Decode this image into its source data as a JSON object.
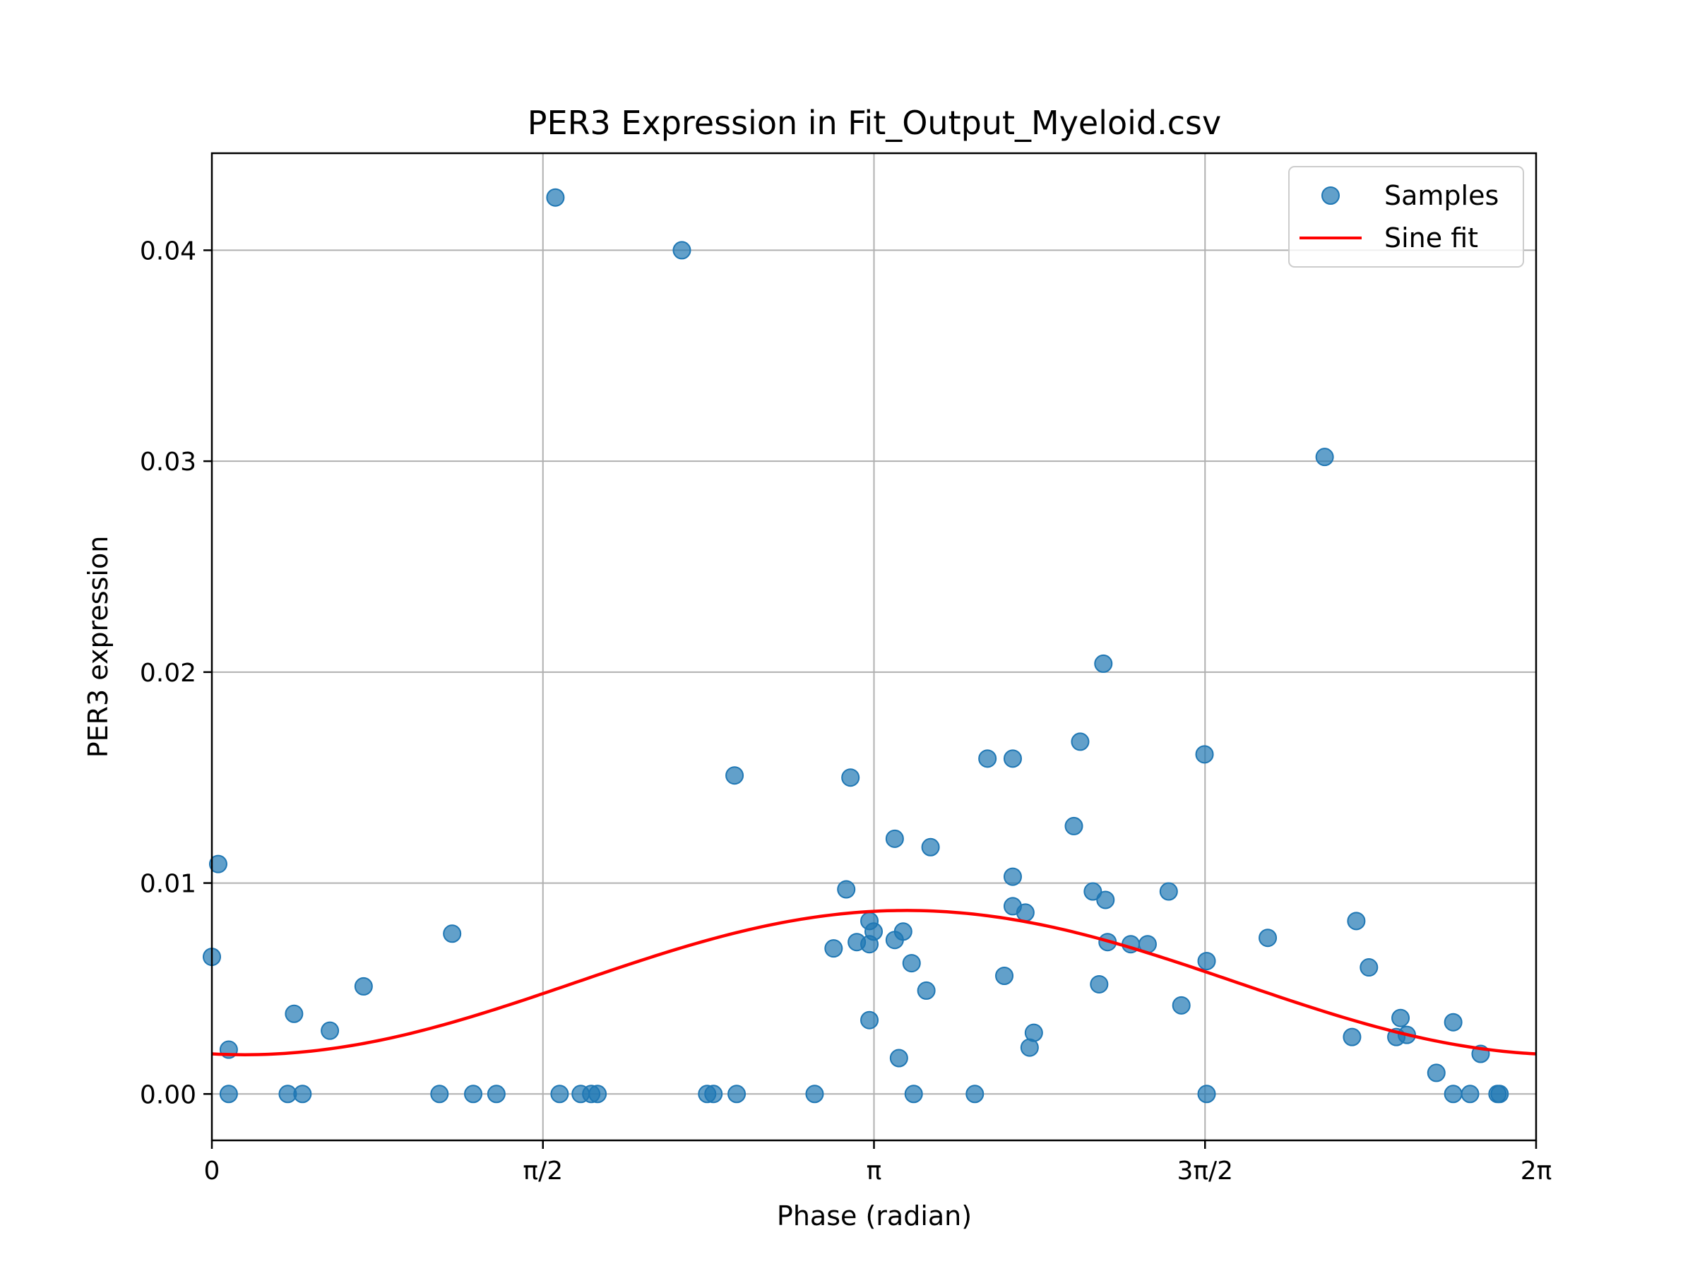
{
  "chart_data": {
    "type": "scatter",
    "title": "PER3 Expression in Fit_Output_Myeloid.csv",
    "xlabel": "Phase (radian)",
    "ylabel": "PER3 expression",
    "xlim": [
      0,
      6.2832
    ],
    "ylim": [
      -0.0022,
      0.0446
    ],
    "grid": true,
    "legend_position": "top-right",
    "x_ticks": [
      {
        "value": 0,
        "label": "0"
      },
      {
        "value": 1.5708,
        "label": "π/2"
      },
      {
        "value": 3.1416,
        "label": "π"
      },
      {
        "value": 4.7124,
        "label": "3π/2"
      },
      {
        "value": 6.2832,
        "label": "2π"
      }
    ],
    "y_ticks": [
      {
        "value": 0.0,
        "label": "0.00"
      },
      {
        "value": 0.01,
        "label": "0.01"
      },
      {
        "value": 0.02,
        "label": "0.02"
      },
      {
        "value": 0.03,
        "label": "0.03"
      },
      {
        "value": 0.04,
        "label": "0.04"
      }
    ],
    "series": [
      {
        "name": "Samples",
        "kind": "scatter",
        "color": "#1f77b4",
        "points": [
          [
            0.0,
            0.0065
          ],
          [
            0.03,
            0.0109
          ],
          [
            0.08,
            0.0021
          ],
          [
            0.08,
            0.0
          ],
          [
            0.36,
            0.0
          ],
          [
            0.39,
            0.0038
          ],
          [
            0.43,
            0.0
          ],
          [
            0.56,
            0.003
          ],
          [
            0.72,
            0.0051
          ],
          [
            1.08,
            0.0
          ],
          [
            1.14,
            0.0076
          ],
          [
            1.24,
            0.0
          ],
          [
            1.35,
            0.0
          ],
          [
            1.63,
            0.0425
          ],
          [
            1.65,
            0.0
          ],
          [
            1.75,
            0.0
          ],
          [
            1.8,
            0.0
          ],
          [
            1.83,
            0.0
          ],
          [
            2.23,
            0.04
          ],
          [
            2.35,
            0.0
          ],
          [
            2.38,
            0.0
          ],
          [
            2.48,
            0.0151
          ],
          [
            2.49,
            0.0
          ],
          [
            2.86,
            0.0
          ],
          [
            2.95,
            0.0069
          ],
          [
            3.01,
            0.0097
          ],
          [
            3.03,
            0.015
          ],
          [
            3.06,
            0.0072
          ],
          [
            3.12,
            0.0082
          ],
          [
            3.12,
            0.0071
          ],
          [
            3.14,
            0.0077
          ],
          [
            3.12,
            0.0035
          ],
          [
            3.24,
            0.0121
          ],
          [
            3.24,
            0.0073
          ],
          [
            3.26,
            0.0017
          ],
          [
            3.28,
            0.0077
          ],
          [
            3.32,
            0.0062
          ],
          [
            3.33,
            0.0
          ],
          [
            3.39,
            0.0049
          ],
          [
            3.41,
            0.0117
          ],
          [
            3.62,
            0.0
          ],
          [
            3.68,
            0.0159
          ],
          [
            3.76,
            0.0056
          ],
          [
            3.8,
            0.0089
          ],
          [
            3.8,
            0.0103
          ],
          [
            3.8,
            0.0159
          ],
          [
            3.86,
            0.0086
          ],
          [
            3.88,
            0.0022
          ],
          [
            3.9,
            0.0029
          ],
          [
            4.09,
            0.0127
          ],
          [
            4.12,
            0.0167
          ],
          [
            4.18,
            0.0096
          ],
          [
            4.21,
            0.0052
          ],
          [
            4.23,
            0.0204
          ],
          [
            4.24,
            0.0092
          ],
          [
            4.25,
            0.0072
          ],
          [
            4.36,
            0.0071
          ],
          [
            4.44,
            0.0071
          ],
          [
            4.54,
            0.0096
          ],
          [
            4.6,
            0.0042
          ],
          [
            4.71,
            0.0161
          ],
          [
            4.72,
            0.0063
          ],
          [
            4.72,
            0.0
          ],
          [
            5.01,
            0.0074
          ],
          [
            5.28,
            0.0302
          ],
          [
            5.41,
            0.0027
          ],
          [
            5.43,
            0.0082
          ],
          [
            5.49,
            0.006
          ],
          [
            5.62,
            0.0027
          ],
          [
            5.64,
            0.0036
          ],
          [
            5.67,
            0.0028
          ],
          [
            5.81,
            0.001
          ],
          [
            5.89,
            0.0034
          ],
          [
            5.89,
            0.0
          ],
          [
            5.97,
            0.0
          ],
          [
            6.02,
            0.0019
          ],
          [
            6.1,
            0.0
          ],
          [
            6.11,
            0.0
          ]
        ]
      },
      {
        "name": "Sine fit",
        "kind": "line",
        "color": "#ff0000",
        "model": "y = offset + amplitude * sin(x + phase)",
        "offset": 0.00528,
        "amplitude": 0.00342,
        "phase": -1.724
      }
    ]
  }
}
